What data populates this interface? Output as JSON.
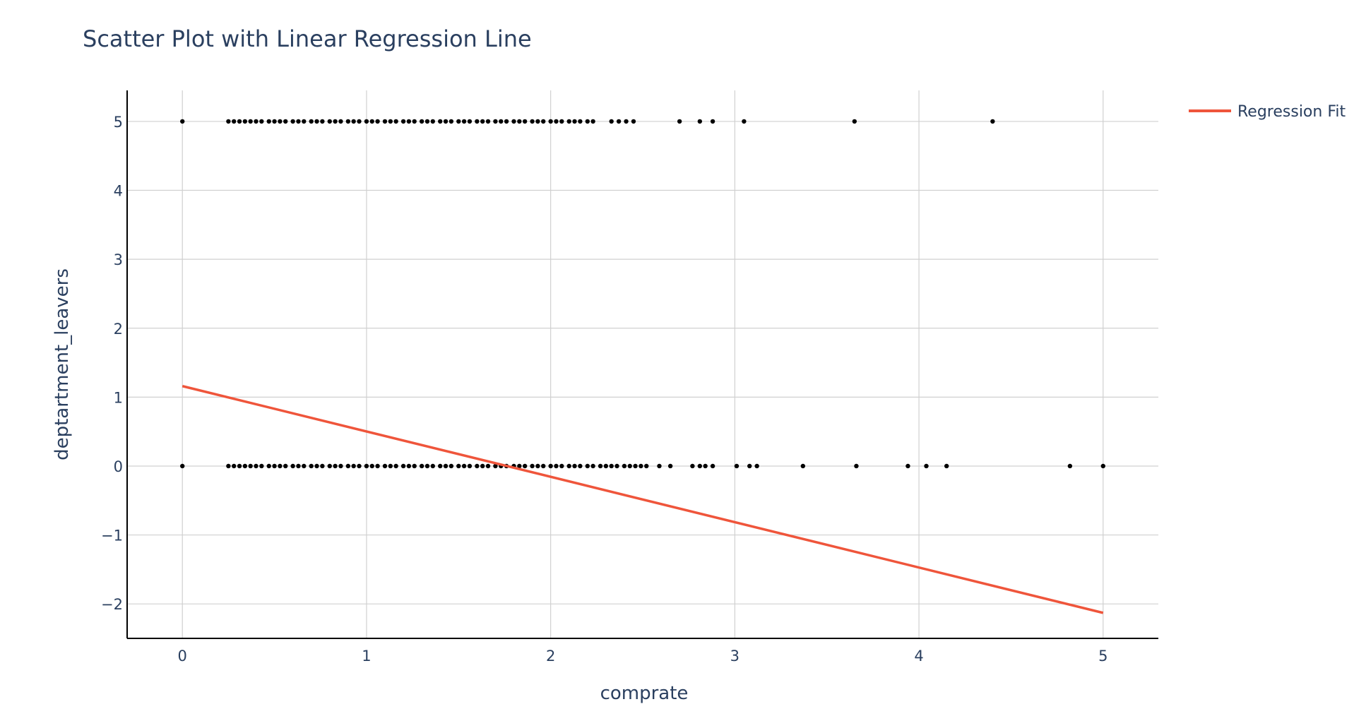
{
  "chart_data": {
    "type": "scatter",
    "title": "Scatter Plot with Linear Regression Line",
    "xlabel": "comprate",
    "ylabel": "deptartment_leavers",
    "xlim": [
      -0.3,
      5.3
    ],
    "ylim": [
      -2.5,
      5.45
    ],
    "xticks": [
      0,
      1,
      2,
      3,
      4,
      5
    ],
    "yticks": [
      -2,
      -1,
      0,
      1,
      2,
      3,
      4,
      5
    ],
    "grid": true,
    "legend_position": "top-right",
    "point_color": "#000000",
    "series": [
      {
        "mode": "markers",
        "color": "#000000",
        "x": [
          0,
          0.25,
          0.28,
          0.31,
          0.34,
          0.37,
          0.4,
          0.43,
          0.47,
          0.5,
          0.53,
          0.56,
          0.6,
          0.63,
          0.66,
          0.7,
          0.73,
          0.76,
          0.8,
          0.83,
          0.86,
          0.9,
          0.93,
          0.96,
          1.0,
          1.03,
          1.06,
          1.1,
          1.13,
          1.16,
          1.2,
          1.23,
          1.26,
          1.3,
          1.33,
          1.36,
          1.4,
          1.43,
          1.46,
          1.5,
          1.53,
          1.56,
          1.6,
          1.63,
          1.66,
          1.7,
          1.73,
          1.76,
          1.8,
          1.83,
          1.86,
          1.9,
          1.93,
          1.96,
          2.0,
          2.03,
          2.06,
          2.1,
          2.13,
          2.16,
          2.2,
          2.23,
          2.33,
          2.37,
          2.41,
          2.45,
          2.7,
          2.81,
          2.88,
          3.05,
          3.65,
          4.4
        ],
        "y": [
          5,
          5,
          5,
          5,
          5,
          5,
          5,
          5,
          5,
          5,
          5,
          5,
          5,
          5,
          5,
          5,
          5,
          5,
          5,
          5,
          5,
          5,
          5,
          5,
          5,
          5,
          5,
          5,
          5,
          5,
          5,
          5,
          5,
          5,
          5,
          5,
          5,
          5,
          5,
          5,
          5,
          5,
          5,
          5,
          5,
          5,
          5,
          5,
          5,
          5,
          5,
          5,
          5,
          5,
          5,
          5,
          5,
          5,
          5,
          5,
          5,
          5,
          5,
          5,
          5,
          5,
          5,
          5,
          5,
          5,
          5,
          5
        ]
      },
      {
        "mode": "markers",
        "color": "#000000",
        "x": [
          0,
          0.25,
          0.28,
          0.31,
          0.34,
          0.37,
          0.4,
          0.43,
          0.47,
          0.5,
          0.53,
          0.56,
          0.6,
          0.63,
          0.66,
          0.7,
          0.73,
          0.76,
          0.8,
          0.83,
          0.86,
          0.9,
          0.93,
          0.96,
          1.0,
          1.03,
          1.06,
          1.1,
          1.13,
          1.16,
          1.2,
          1.23,
          1.26,
          1.3,
          1.33,
          1.36,
          1.4,
          1.43,
          1.46,
          1.5,
          1.53,
          1.56,
          1.6,
          1.63,
          1.66,
          1.7,
          1.73,
          1.76,
          1.8,
          1.83,
          1.86,
          1.9,
          1.93,
          1.96,
          2.0,
          2.03,
          2.06,
          2.1,
          2.13,
          2.16,
          2.2,
          2.23,
          2.27,
          2.3,
          2.33,
          2.36,
          2.4,
          2.43,
          2.46,
          2.49,
          2.52,
          2.59,
          2.65,
          2.77,
          2.81,
          2.84,
          2.88,
          3.01,
          3.08,
          3.12,
          3.37,
          3.66,
          3.94,
          4.04,
          4.15,
          4.82,
          5.0
        ],
        "y": [
          0,
          0,
          0,
          0,
          0,
          0,
          0,
          0,
          0,
          0,
          0,
          0,
          0,
          0,
          0,
          0,
          0,
          0,
          0,
          0,
          0,
          0,
          0,
          0,
          0,
          0,
          0,
          0,
          0,
          0,
          0,
          0,
          0,
          0,
          0,
          0,
          0,
          0,
          0,
          0,
          0,
          0,
          0,
          0,
          0,
          0,
          0,
          0,
          0,
          0,
          0,
          0,
          0,
          0,
          0,
          0,
          0,
          0,
          0,
          0,
          0,
          0,
          0,
          0,
          0,
          0,
          0,
          0,
          0,
          0,
          0,
          0,
          0,
          0,
          0,
          0,
          0,
          0,
          0,
          0,
          0,
          0,
          0,
          0,
          0,
          0,
          0
        ]
      },
      {
        "name": "Regression Fit",
        "mode": "lines",
        "color": "#ef553b",
        "x": [
          0,
          5
        ],
        "y": [
          1.16,
          -2.13
        ]
      }
    ]
  }
}
